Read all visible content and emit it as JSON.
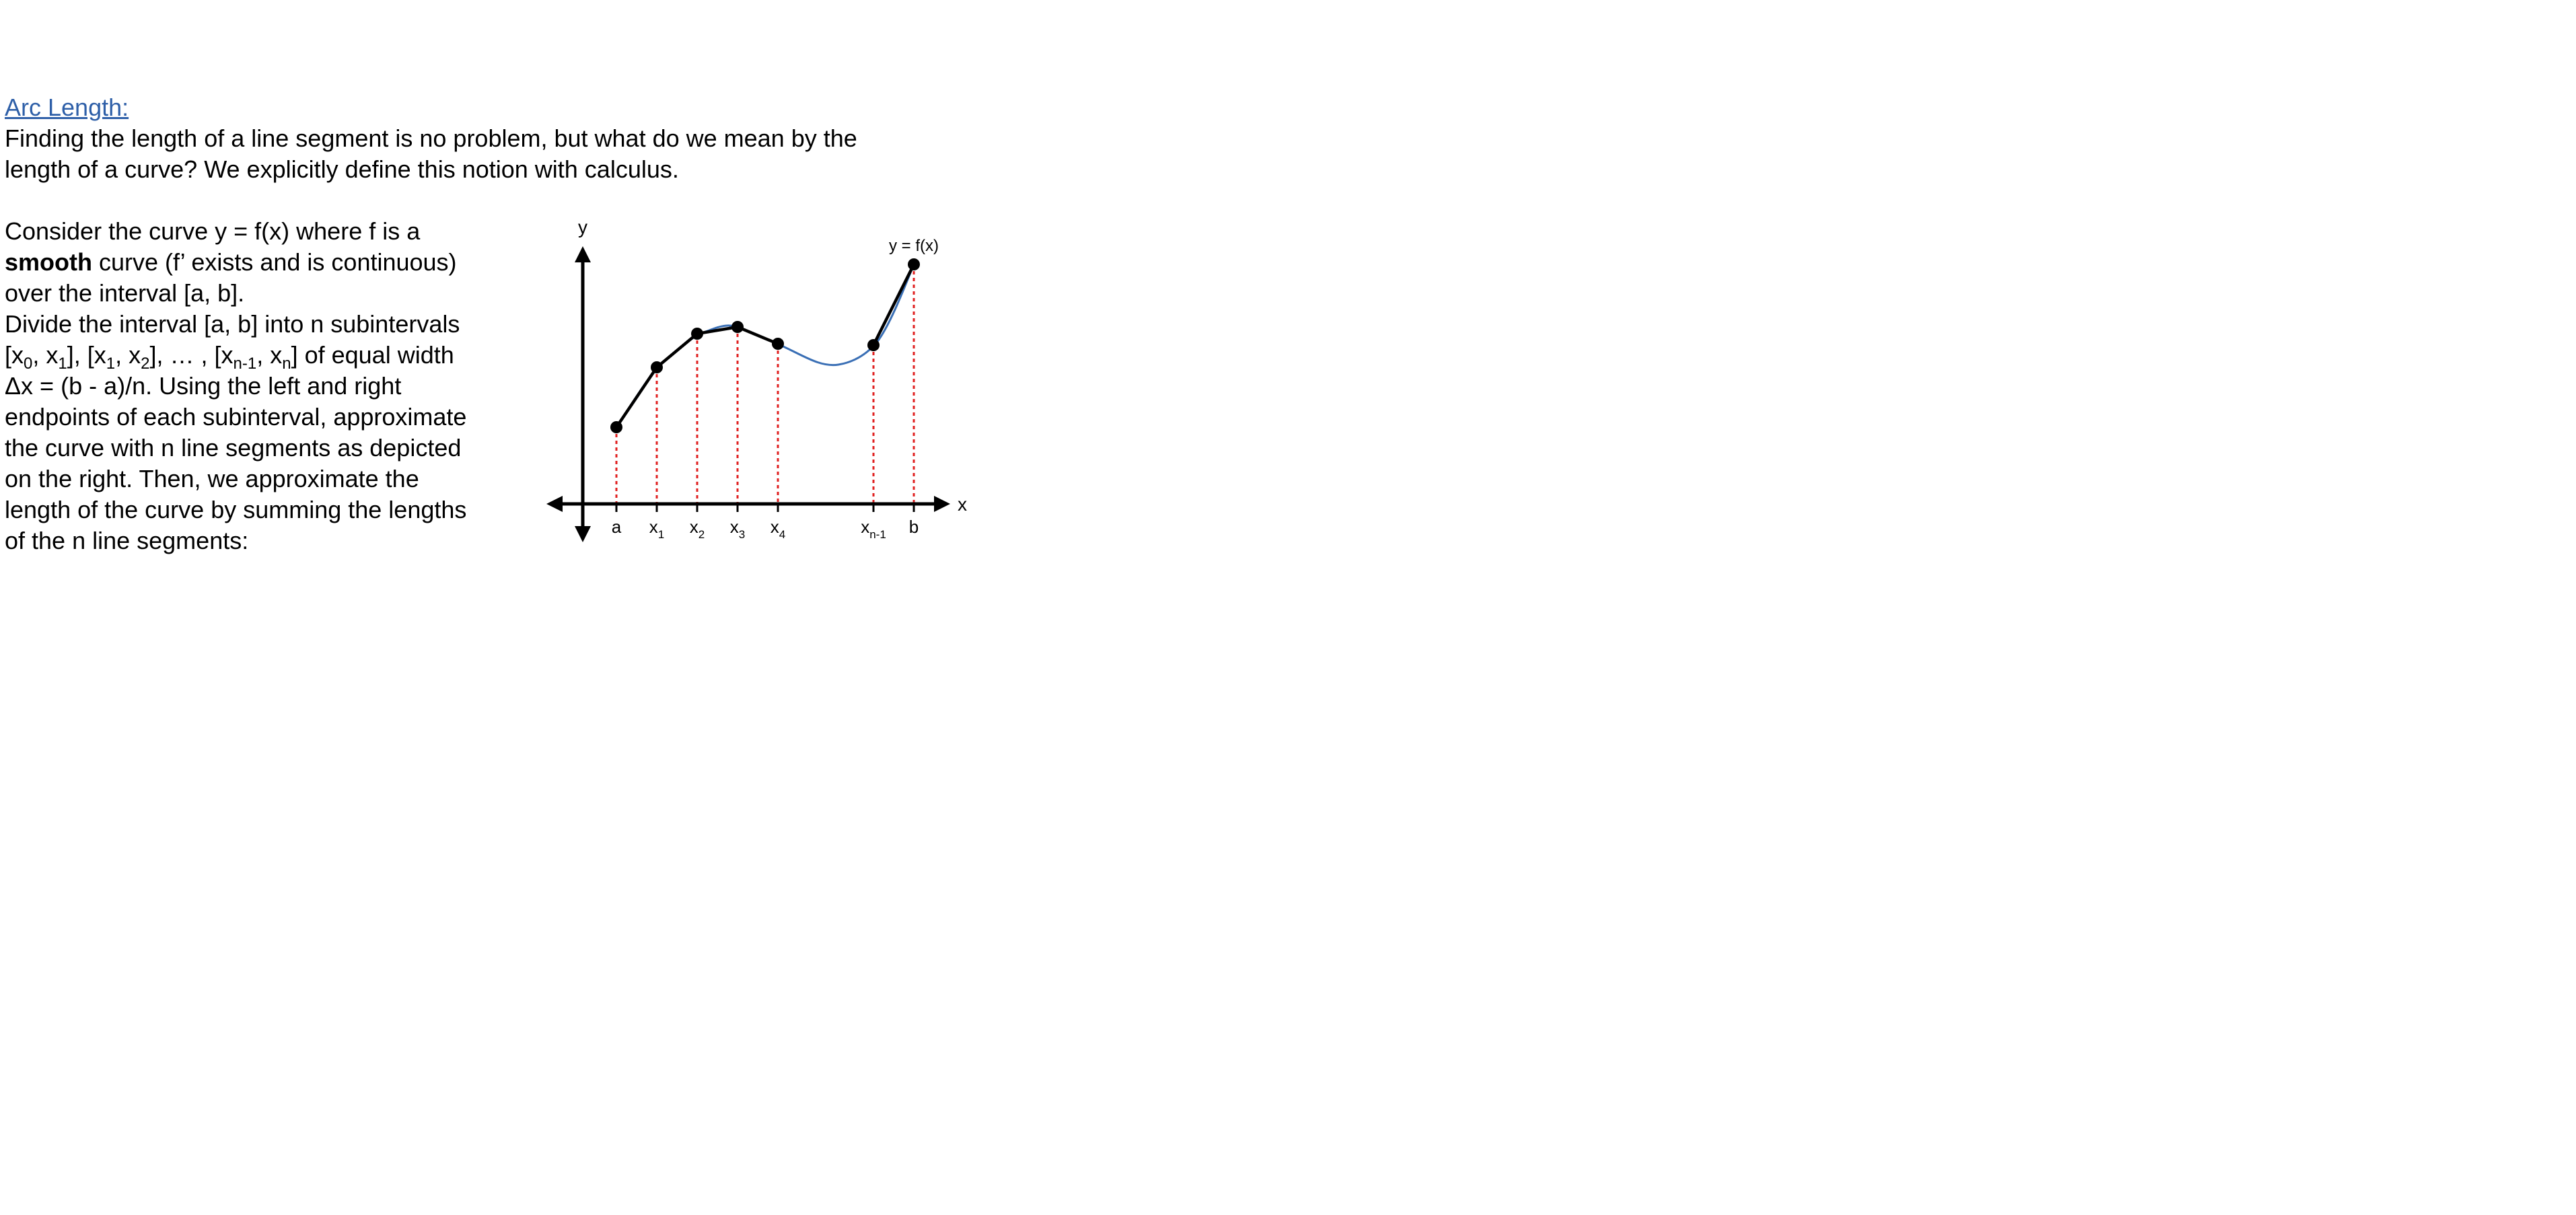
{
  "heading": "Arc Length:",
  "intro": {
    "line1": "Finding the length of a line segment is no problem, but what do we mean by the",
    "line2": "length of a curve?  We explicitly define this notion with calculus."
  },
  "body": {
    "l1": "Consider the curve y = f(x) where f is a",
    "l2_bold": "smooth",
    "l2_rest": " curve (f’ exists and is continuous)",
    "l3": "over the interval [a, b].",
    "l4": "Divide the interval [a, b] into n subintervals",
    "l5": {
      "p1": "[x",
      "s1": "0",
      "p2": ", x",
      "s2": "1",
      "p3": "], [x",
      "s3": "1",
      "p4": ", x",
      "s4": "2",
      "p5": "], … , [x",
      "s5": "n-1",
      "p6": ", x",
      "s6": "n",
      "p7": "] of equal width"
    },
    "l6": " Δx = (b - a)/n.  Using the left and right",
    "l7": "endpoints of each subinterval, approximate",
    "l8": "the curve with n line segments as depicted",
    "l9": "on the right.  Then, we approximate the",
    "l10": "length of the curve by summing the lengths",
    "l11": "of the n line segments:"
  },
  "diagram": {
    "y_axis_label": "y",
    "x_axis_label": "x",
    "curve_label": "y = f(x)",
    "tick_labels": [
      {
        "base": "a",
        "sub": ""
      },
      {
        "base": "x",
        "sub": "1"
      },
      {
        "base": "x",
        "sub": "2"
      },
      {
        "base": "x",
        "sub": "3"
      },
      {
        "base": "x",
        "sub": "4"
      },
      {
        "base": "x",
        "sub": "n-1"
      },
      {
        "base": "b",
        "sub": ""
      }
    ],
    "colors": {
      "curve": "#3a6fb5",
      "segments": "#000000",
      "guides": "#e02020",
      "axes": "#000000"
    }
  }
}
